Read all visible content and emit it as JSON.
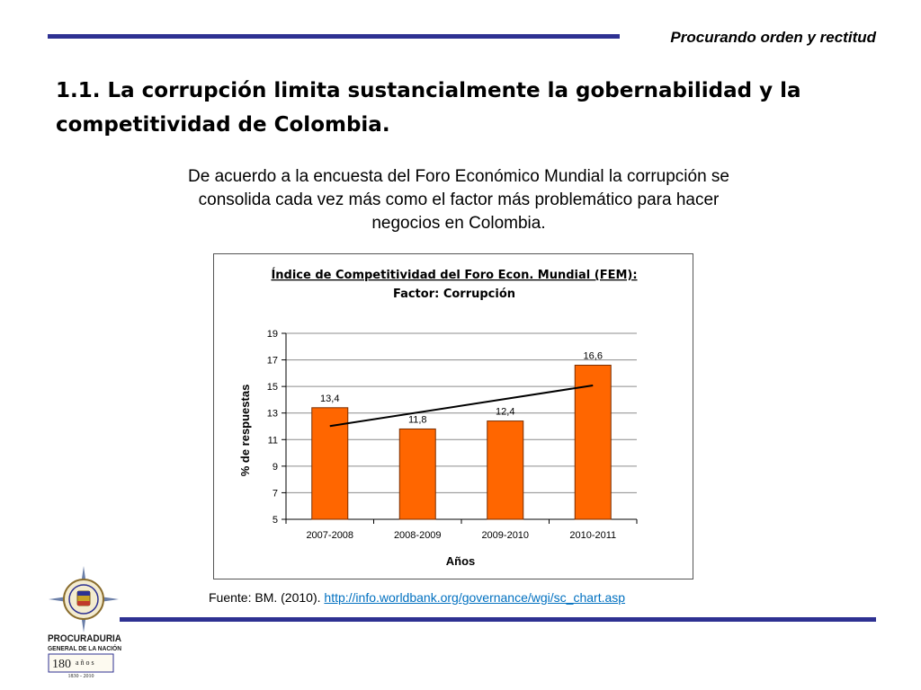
{
  "header": {
    "motto": "Procurando orden y rectitud"
  },
  "slide": {
    "title": "1.1. La corrupción limita sustancialmente la gobernabilidad y la competitividad de Colombia.",
    "intro": "De acuerdo a la encuesta del Foro Económico Mundial la corrupción se consolida cada vez más como el factor más problemático para hacer negocios en Colombia."
  },
  "chart_data": {
    "type": "bar",
    "title": "Índice de Competitividad del Foro Econ. Mundial (FEM):",
    "subtitle": "Factor: Corrupción",
    "categories": [
      "2007-2008",
      "2008-2009",
      "2009-2010",
      "2010-2011"
    ],
    "values": [
      13.4,
      11.8,
      12.4,
      16.6
    ],
    "value_labels": [
      "13,4",
      "11,8",
      "12,4",
      "16,6"
    ],
    "xlabel": "Años",
    "ylabel": "% de respuestas",
    "ylim": [
      5,
      19
    ],
    "yticks": [
      5,
      7,
      9,
      11,
      13,
      15,
      17,
      19
    ],
    "bar_color": "#ff6600",
    "trendline": true,
    "grid": true,
    "legend": "none"
  },
  "footer": {
    "source_prefix": "Fuente: BM. (2010).",
    "source_link": "http://info.worldbank.org/governance/wgi/sc_chart.asp"
  },
  "logo": {
    "name": "PROCURADURIA",
    "subname": "GENERAL DE LA NACIÓN",
    "anniversary": "180",
    "anniversary_word": "años",
    "years": "1830 - 2010"
  },
  "colors": {
    "rule": "#2e3192",
    "bar": "#ff6600",
    "link": "#0070c0"
  }
}
